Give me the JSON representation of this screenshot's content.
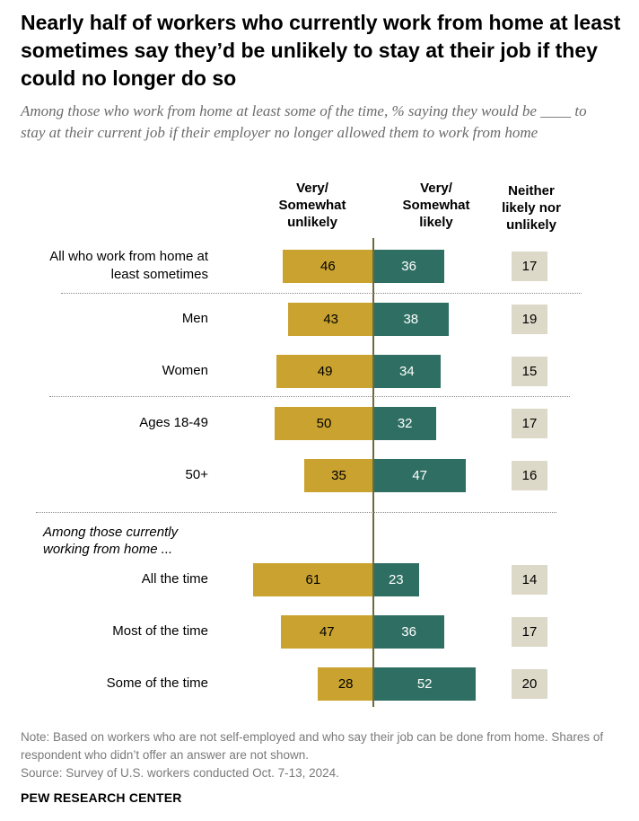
{
  "title": "Nearly half of workers who currently work from home at least sometimes say they’d be unlikely to stay at their job if they could no longer do so",
  "subtitle": "Among those who work from home at least some of the time, % saying they would be ____ to stay at their current job if their employer no longer allowed them to work from home",
  "columns": {
    "unlikely": "Very/ Somewhat unlikely",
    "likely": "Very/ Somewhat likely",
    "neither": "Neither likely nor unlikely"
  },
  "colors": {
    "unlikely": "#c9a22f",
    "likely": "#2f6f63",
    "neither": "#dcd9c8"
  },
  "group_label": "Among those currently working from home ...",
  "chart_data": {
    "type": "bar",
    "orientation": "diverging-horizontal",
    "categories": [
      "All who work from home at least sometimes",
      "Men",
      "Women",
      "Ages 18-49",
      "50+",
      "All the time",
      "Most of the time",
      "Some of the time"
    ],
    "series": [
      {
        "name": "Very/ Somewhat unlikely",
        "values": [
          46,
          43,
          49,
          50,
          35,
          61,
          47,
          28
        ]
      },
      {
        "name": "Very/ Somewhat likely",
        "values": [
          36,
          38,
          34,
          32,
          47,
          23,
          36,
          52
        ]
      },
      {
        "name": "Neither likely nor unlikely",
        "values": [
          17,
          19,
          15,
          17,
          16,
          14,
          17,
          20
        ]
      }
    ],
    "xlim": [
      0,
      100
    ]
  },
  "note": "Note: Based on workers who are not self-employed and who say their job can be done from home. Shares of respondent who didn’t offer an answer are not shown.",
  "source": "Source: Survey of U.S. workers conducted Oct. 7-13, 2024.",
  "brand": "PEW RESEARCH CENTER"
}
